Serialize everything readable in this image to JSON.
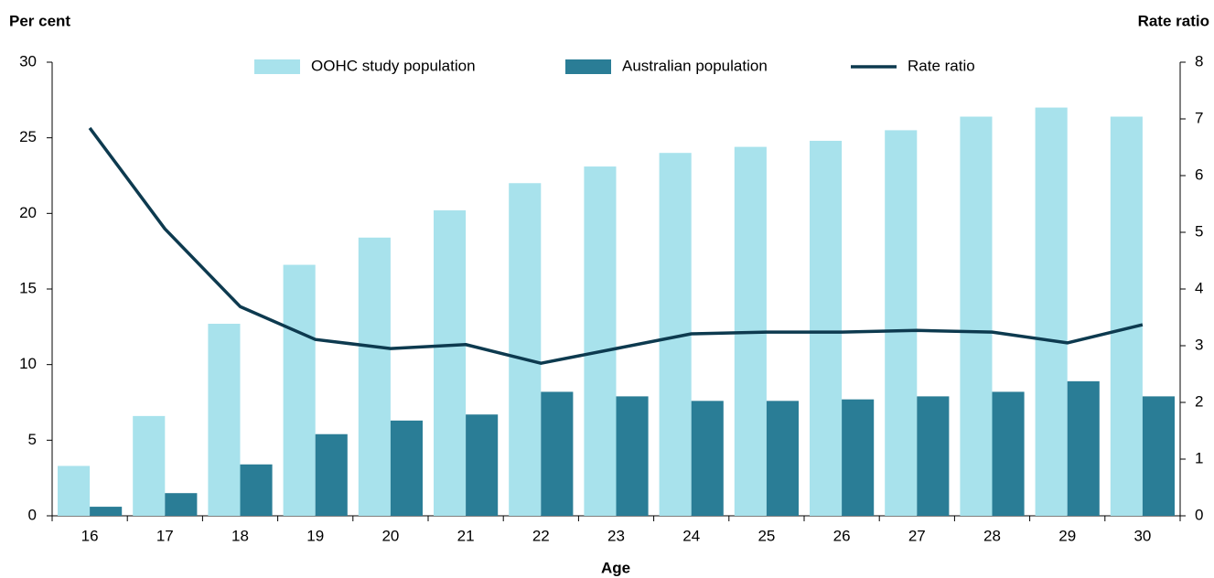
{
  "chart_data": {
    "type": "bar",
    "y_label": "Per cent",
    "y2_label": "Rate ratio",
    "x_label": "Age",
    "categories": [
      "16",
      "17",
      "18",
      "19",
      "20",
      "21",
      "22",
      "23",
      "24",
      "25",
      "26",
      "27",
      "28",
      "29",
      "30"
    ],
    "series": [
      {
        "name": "OOHC study population",
        "color": "#a8e2ec",
        "values": [
          3.3,
          6.6,
          12.7,
          16.6,
          18.4,
          20.2,
          22.0,
          23.1,
          24.0,
          24.4,
          24.8,
          25.5,
          26.4,
          27.0,
          26.4
        ]
      },
      {
        "name": "Australian population",
        "color": "#2a7d96",
        "values": [
          0.6,
          1.5,
          3.4,
          5.4,
          6.3,
          6.7,
          8.2,
          7.9,
          7.6,
          7.6,
          7.7,
          7.9,
          8.2,
          8.9,
          7.9
        ]
      },
      {
        "name": "Rate ratio",
        "color": "#0d3a4f",
        "type": "line",
        "axis": "y2",
        "values": [
          6.84,
          5.06,
          3.69,
          3.11,
          2.95,
          3.02,
          2.69,
          2.95,
          3.21,
          3.24,
          3.24,
          3.27,
          3.24,
          3.05,
          3.37
        ]
      }
    ],
    "ylim": [
      0,
      30
    ],
    "yticks": [
      0,
      5,
      10,
      15,
      20,
      25,
      30
    ],
    "y2lim": [
      0,
      8
    ],
    "y2ticks": [
      0,
      1,
      2,
      3,
      4,
      5,
      6,
      7,
      8
    ],
    "grid": false,
    "legend": "top"
  }
}
